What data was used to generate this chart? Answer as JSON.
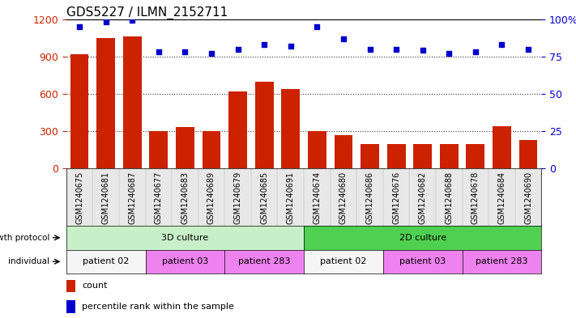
{
  "title": "GDS5227 / ILMN_2152711",
  "samples": [
    "GSM1240675",
    "GSM1240681",
    "GSM1240687",
    "GSM1240677",
    "GSM1240683",
    "GSM1240689",
    "GSM1240679",
    "GSM1240685",
    "GSM1240691",
    "GSM1240674",
    "GSM1240680",
    "GSM1240686",
    "GSM1240676",
    "GSM1240682",
    "GSM1240688",
    "GSM1240678",
    "GSM1240684",
    "GSM1240690"
  ],
  "counts": [
    920,
    1050,
    1060,
    300,
    330,
    300,
    620,
    700,
    640,
    300,
    270,
    200,
    200,
    200,
    200,
    200,
    340,
    230
  ],
  "percentiles": [
    95,
    98,
    99,
    78,
    78,
    77,
    80,
    83,
    82,
    95,
    87,
    80,
    80,
    79,
    77,
    78,
    83,
    80
  ],
  "growth_protocol_groups": [
    {
      "label": "3D culture",
      "start": 0,
      "end": 9,
      "color": "#c8f0c8"
    },
    {
      "label": "2D culture",
      "start": 9,
      "end": 18,
      "color": "#50d050"
    }
  ],
  "individual_groups": [
    {
      "label": "patient 02",
      "start": 0,
      "end": 3,
      "color": "#f5f5f5"
    },
    {
      "label": "patient 03",
      "start": 3,
      "end": 6,
      "color": "#ee82ee"
    },
    {
      "label": "patient 283",
      "start": 6,
      "end": 9,
      "color": "#ee82ee"
    },
    {
      "label": "patient 02",
      "start": 9,
      "end": 12,
      "color": "#f5f5f5"
    },
    {
      "label": "patient 03",
      "start": 12,
      "end": 15,
      "color": "#ee82ee"
    },
    {
      "label": "patient 283",
      "start": 15,
      "end": 18,
      "color": "#ee82ee"
    }
  ],
  "bar_color": "#cc2200",
  "dot_color": "#0000cc",
  "left_yaxis": {
    "min": 0,
    "max": 1200,
    "ticks": [
      0,
      300,
      600,
      900,
      1200
    ],
    "color": "#cc2200"
  },
  "right_yaxis": {
    "min": 0,
    "max": 100,
    "ticks": [
      0,
      25,
      50,
      75,
      100
    ],
    "color": "#0000cc"
  },
  "legend_items": [
    {
      "label": "count",
      "color": "#cc2200"
    },
    {
      "label": "percentile rank within the sample",
      "color": "#0000cc"
    }
  ]
}
